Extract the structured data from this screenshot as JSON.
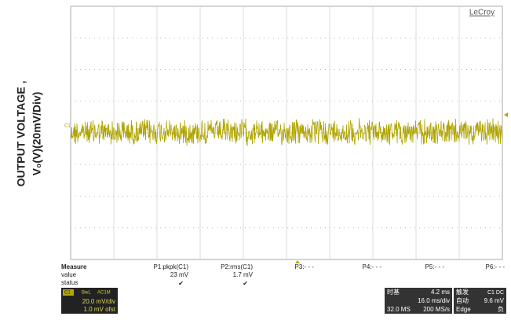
{
  "y_axis_label": [
    "OUTPUT VOLTAGE ,",
    "V₀(V)(20mV/Div)"
  ],
  "brand": "LeCroy",
  "trace_label": "C1",
  "measure": {
    "header": "Measure",
    "row_labels": [
      "value",
      "status"
    ],
    "params": [
      {
        "name": "P1:pkpk(C1)",
        "value": "23 mV",
        "status": "✔"
      },
      {
        "name": "P2:rms(C1)",
        "value": "1.7 mV",
        "status": "✔"
      },
      {
        "name": "P3:- - -"
      },
      {
        "name": "P4:- - -"
      },
      {
        "name": "P5:- - -"
      },
      {
        "name": "P6:- - -"
      }
    ]
  },
  "channel": {
    "name": "C1",
    "tags": [
      "BwL",
      "AC1M"
    ],
    "scale": "20.0 mV/div",
    "offset": "1.0 mV ofst"
  },
  "timebase": {
    "title": "时基",
    "delay": "4.2 ms",
    "scale": "16.0 ms/div",
    "samples": "32.0 MS",
    "rate": "200 MS/s"
  },
  "trigger": {
    "title": "触发",
    "source": "C1 DC",
    "mode": "自动",
    "level": "9.6 mV",
    "type": "Edge",
    "slope": "负"
  }
}
